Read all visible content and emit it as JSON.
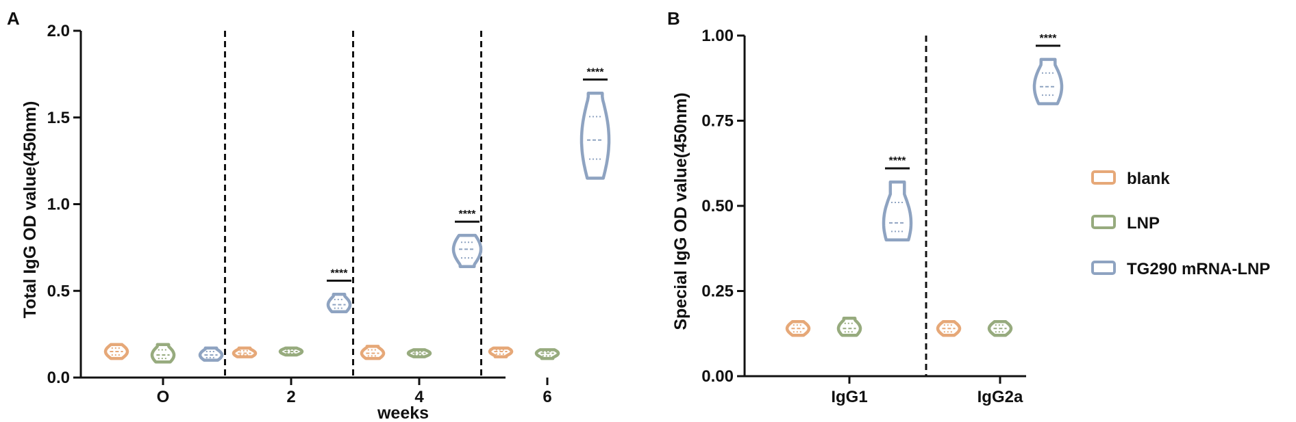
{
  "colors": {
    "blank": "#E6A878",
    "LNP": "#97AB7E",
    "TG290 mRNA-LNP": "#8EA3C1",
    "axis": "#111111"
  },
  "legend": {
    "position": "right",
    "items": [
      {
        "key": "blank",
        "label": "blank"
      },
      {
        "key": "LNP",
        "label": "LNP"
      },
      {
        "key": "TG290 mRNA-LNP",
        "label": "TG290 mRNA-LNP"
      }
    ]
  },
  "chart_data": [
    {
      "panel": "A",
      "type": "violin",
      "xlabel": "weeks",
      "ylabel": "Total IgG OD value(450nm)",
      "ylim": [
        0,
        2.0
      ],
      "yticks": [
        "0.0",
        "0.5",
        "1.0",
        "1.5",
        "2.0"
      ],
      "categories": [
        "O",
        "2",
        "4",
        "6"
      ],
      "group_separators": "dashed vertical lines between groups",
      "series": [
        {
          "name": "blank",
          "medians": [
            0.15,
            0.14,
            0.14,
            0.15
          ],
          "mins": [
            0.11,
            0.12,
            0.11,
            0.12
          ],
          "maxs": [
            0.19,
            0.17,
            0.18,
            0.17
          ]
        },
        {
          "name": "LNP",
          "medians": [
            0.13,
            0.15,
            0.14,
            0.14
          ],
          "mins": [
            0.09,
            0.13,
            0.12,
            0.11
          ],
          "maxs": [
            0.19,
            0.17,
            0.16,
            0.16
          ]
        },
        {
          "name": "TG290 mRNA-LNP",
          "medians": [
            0.13,
            0.42,
            0.74,
            1.37
          ],
          "mins": [
            0.1,
            0.38,
            0.64,
            1.15
          ],
          "maxs": [
            0.17,
            0.48,
            0.82,
            1.64
          ]
        }
      ],
      "annotations": [
        {
          "category": "2",
          "text": "****"
        },
        {
          "category": "4",
          "text": "****"
        },
        {
          "category": "6",
          "text": "****"
        }
      ]
    },
    {
      "panel": "B",
      "type": "violin",
      "xlabel": "",
      "ylabel": "Special IgG OD value(450nm)",
      "ylim": [
        0,
        1.0
      ],
      "yticks": [
        "0.00",
        "0.25",
        "0.50",
        "0.75",
        "1.00"
      ],
      "categories": [
        "IgG1",
        "IgG2a"
      ],
      "group_separators": "dashed vertical line between groups",
      "series": [
        {
          "name": "blank",
          "medians": [
            0.14,
            0.14
          ],
          "mins": [
            0.12,
            0.12
          ],
          "maxs": [
            0.16,
            0.16
          ]
        },
        {
          "name": "LNP",
          "medians": [
            0.14,
            0.14
          ],
          "mins": [
            0.12,
            0.12
          ],
          "maxs": [
            0.17,
            0.16
          ]
        },
        {
          "name": "TG290 mRNA-LNP",
          "medians": [
            0.45,
            0.85
          ],
          "mins": [
            0.4,
            0.8
          ],
          "maxs": [
            0.57,
            0.93
          ]
        }
      ],
      "annotations": [
        {
          "category": "IgG1",
          "text": "****"
        },
        {
          "category": "IgG2a",
          "text": "****"
        }
      ]
    }
  ]
}
